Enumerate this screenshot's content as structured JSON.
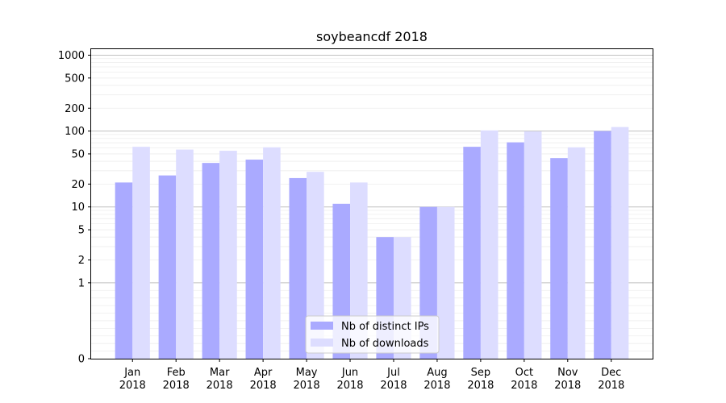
{
  "chart_data": {
    "type": "bar",
    "title": "soybeancdf 2018",
    "scale": "symlog",
    "categories": [
      "Jan\n2018",
      "Feb\n2018",
      "Mar\n2018",
      "Apr\n2018",
      "May\n2018",
      "Jun\n2018",
      "Jul\n2018",
      "Aug\n2018",
      "Sep\n2018",
      "Oct\n2018",
      "Nov\n2018",
      "Dec\n2018"
    ],
    "series": [
      {
        "name": "Nb of distinct IPs",
        "color": "#aaaaff",
        "values": [
          21,
          26,
          38,
          42,
          24,
          11,
          4,
          10,
          62,
          71,
          44,
          100
        ]
      },
      {
        "name": "Nb of downloads",
        "color": "#ddddff",
        "values": [
          62,
          57,
          55,
          61,
          29,
          21,
          4,
          10,
          102,
          99,
          61,
          113
        ]
      }
    ],
    "yticks": [
      0,
      1,
      2,
      5,
      10,
      20,
      50,
      100,
      200,
      500,
      1000
    ],
    "ylim": [
      0,
      1200
    ],
    "grid": "y",
    "legend_position": "lower center"
  }
}
